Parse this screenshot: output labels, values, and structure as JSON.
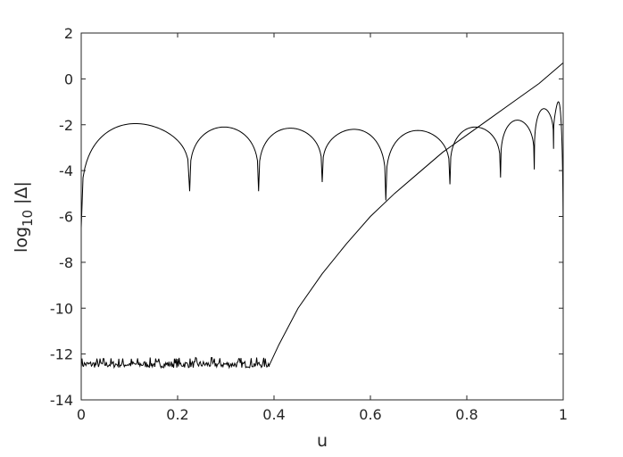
{
  "chart_data": {
    "type": "line",
    "title": "",
    "xlabel": "u",
    "ylabel": {
      "base": "log",
      "subscript": "10",
      "suffix": " |Δ|"
    },
    "xlim": [
      0,
      1
    ],
    "ylim": [
      -14,
      2
    ],
    "xticks": [
      0,
      0.2,
      0.4,
      0.6,
      0.8,
      1
    ],
    "xtick_labels": [
      "0",
      "0.2",
      "0.4",
      "0.6",
      "0.8",
      "1"
    ],
    "yticks": [
      2,
      0,
      -2,
      -4,
      -6,
      -8,
      -10,
      -12,
      -14
    ],
    "ytick_labels": [
      "2",
      "0",
      "-2",
      "-4",
      "-6",
      "-8",
      "-10",
      "-12",
      "-14"
    ],
    "grid": false,
    "legend": "none",
    "line_color": "#000000",
    "series": [
      {
        "description": "oscillating error curve with sharp dips",
        "dips": [
          {
            "x": 0.0,
            "y": -6.5
          },
          {
            "x": 0.225,
            "y": -4.9
          },
          {
            "x": 0.368,
            "y": -4.9
          },
          {
            "x": 0.5,
            "y": -4.5
          },
          {
            "x": 0.632,
            "y": -5.3
          },
          {
            "x": 0.765,
            "y": -4.6
          },
          {
            "x": 0.87,
            "y": -4.3
          },
          {
            "x": 0.94,
            "y": -3.95
          },
          {
            "x": 0.98,
            "y": -3.05
          },
          {
            "x": 1.0,
            "y": -10.5
          }
        ],
        "peaks": [
          {
            "x": 0.13,
            "y": -1.95
          },
          {
            "x": 0.295,
            "y": -2.1
          },
          {
            "x": 0.435,
            "y": -2.15
          },
          {
            "x": 0.565,
            "y": -2.2
          },
          {
            "x": 0.7,
            "y": -2.25
          },
          {
            "x": 0.82,
            "y": -2.1
          },
          {
            "x": 0.905,
            "y": -1.8
          },
          {
            "x": 0.96,
            "y": -1.3
          },
          {
            "x": 0.995,
            "y": -1.0
          }
        ]
      },
      {
        "description": "noise floor then rising error curve",
        "noise_floor": {
          "x_start": 0.0,
          "x_end": 0.39,
          "y": -12.45,
          "spread": 0.3
        },
        "x": [
          0.39,
          0.41,
          0.45,
          0.5,
          0.55,
          0.6,
          0.65,
          0.7,
          0.75,
          0.8,
          0.85,
          0.9,
          0.95,
          1.0
        ],
        "y": [
          -12.5,
          -11.6,
          -10.0,
          -8.5,
          -7.2,
          -6.0,
          -5.0,
          -4.1,
          -3.2,
          -2.45,
          -1.7,
          -0.95,
          -0.2,
          0.7
        ]
      }
    ]
  }
}
